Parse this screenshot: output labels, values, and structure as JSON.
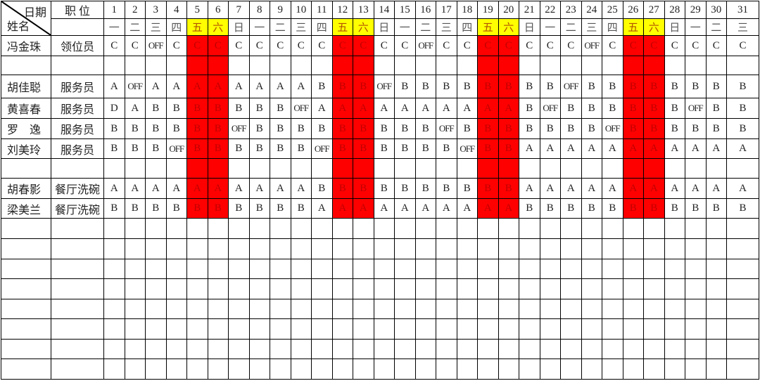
{
  "header": {
    "date_label": "日期",
    "name_label": "姓名",
    "position_label": "职 位",
    "days": [
      "1",
      "2",
      "3",
      "4",
      "5",
      "6",
      "7",
      "8",
      "9",
      "10",
      "11",
      "12",
      "13",
      "14",
      "15",
      "16",
      "17",
      "18",
      "19",
      "20",
      "21",
      "22",
      "23",
      "24",
      "25",
      "26",
      "27",
      "28",
      "29",
      "30",
      "31"
    ],
    "weekdays": [
      "一",
      "二",
      "三",
      "四",
      "五",
      "六",
      "日",
      "一",
      "二",
      "三",
      "四",
      "五",
      "六",
      "日",
      "一",
      "二",
      "三",
      "四",
      "五",
      "六",
      "日",
      "一",
      "二",
      "三",
      "四",
      "五",
      "六",
      "日",
      "一",
      "二",
      "三"
    ],
    "highlight_days": [
      "5",
      "6",
      "12",
      "13",
      "19",
      "20",
      "26",
      "27"
    ]
  },
  "colors": {
    "weekend_header": "#ffff00",
    "weekend_column": "#ff0000",
    "weekend_text": "#c00000"
  },
  "rows": [
    {
      "name": "冯金珠",
      "position": "领位员",
      "shifts": [
        "C",
        "C",
        "OFF",
        "C",
        "C",
        "C",
        "C",
        "C",
        "C",
        "C",
        "C",
        "C",
        "C",
        "C",
        "C",
        "OFF",
        "C",
        "C",
        "C",
        "C",
        "C",
        "C",
        "C",
        "OFF",
        "C",
        "C",
        "C",
        "C",
        "C",
        "C",
        "C"
      ]
    },
    {
      "name": "",
      "position": "",
      "shifts": []
    },
    {
      "name": "胡佳聪",
      "position": "服务员",
      "shifts": [
        "A",
        "OFF",
        "A",
        "A",
        "A",
        "A",
        "A",
        "A",
        "A",
        "A",
        "B",
        "B",
        "B",
        "OFF",
        "B",
        "B",
        "B",
        "B",
        "B",
        "B",
        "B",
        "B",
        "OFF",
        "B",
        "B",
        "B",
        "B",
        "B",
        "B",
        "B",
        "B"
      ]
    },
    {
      "name": "黄喜春",
      "position": "服务员",
      "shifts": [
        "D",
        "A",
        "B",
        "B",
        "B",
        "B",
        "B",
        "B",
        "B",
        "OFF",
        "A",
        "A",
        "A",
        "A",
        "A",
        "A",
        "A",
        "A",
        "A",
        "A",
        "B",
        "OFF",
        "B",
        "B",
        "B",
        "B",
        "B",
        "B",
        "OFF",
        "B",
        "B"
      ]
    },
    {
      "name": "罗　逸",
      "position": "服务员",
      "shifts": [
        "B",
        "B",
        "B",
        "B",
        "B",
        "B",
        "OFF",
        "B",
        "B",
        "B",
        "B",
        "B",
        "B",
        "B",
        "B",
        "B",
        "OFF",
        "B",
        "B",
        "B",
        "B",
        "B",
        "B",
        "B",
        "OFF",
        "B",
        "B",
        "B",
        "B",
        "B",
        "B"
      ]
    },
    {
      "name": "刘美玲",
      "position": "服务员",
      "shifts": [
        "B",
        "B",
        "B",
        "OFF",
        "B",
        "B",
        "B",
        "B",
        "B",
        "B",
        "OFF",
        "B",
        "B",
        "B",
        "B",
        "B",
        "B",
        "OFF",
        "B",
        "B",
        "A",
        "A",
        "A",
        "A",
        "A",
        "A",
        "A",
        "A",
        "A",
        "A",
        "A"
      ]
    },
    {
      "name": "",
      "position": "",
      "shifts": []
    },
    {
      "name": "胡春影",
      "position": "餐厅洗碗",
      "shifts": [
        "A",
        "A",
        "A",
        "A",
        "A",
        "A",
        "A",
        "A",
        "A",
        "A",
        "B",
        "B",
        "B",
        "B",
        "B",
        "B",
        "B",
        "B",
        "B",
        "B",
        "A",
        "A",
        "A",
        "A",
        "A",
        "A",
        "A",
        "A",
        "A",
        "A",
        "A"
      ]
    },
    {
      "name": "梁美兰",
      "position": "餐厅洗碗",
      "shifts": [
        "B",
        "B",
        "B",
        "B",
        "B",
        "B",
        "B",
        "B",
        "B",
        "B",
        "A",
        "A",
        "A",
        "A",
        "A",
        "A",
        "A",
        "A",
        "A",
        "A",
        "B",
        "B",
        "B",
        "B",
        "B",
        "B",
        "B",
        "B",
        "B",
        "B",
        "B"
      ]
    },
    {
      "name": "",
      "position": "",
      "shifts": []
    },
    {
      "name": "",
      "position": "",
      "shifts": []
    },
    {
      "name": "",
      "position": "",
      "shifts": []
    },
    {
      "name": "",
      "position": "",
      "shifts": []
    },
    {
      "name": "",
      "position": "",
      "shifts": []
    },
    {
      "name": "",
      "position": "",
      "shifts": []
    },
    {
      "name": "",
      "position": "",
      "shifts": []
    },
    {
      "name": "",
      "position": "",
      "shifts": []
    }
  ]
}
